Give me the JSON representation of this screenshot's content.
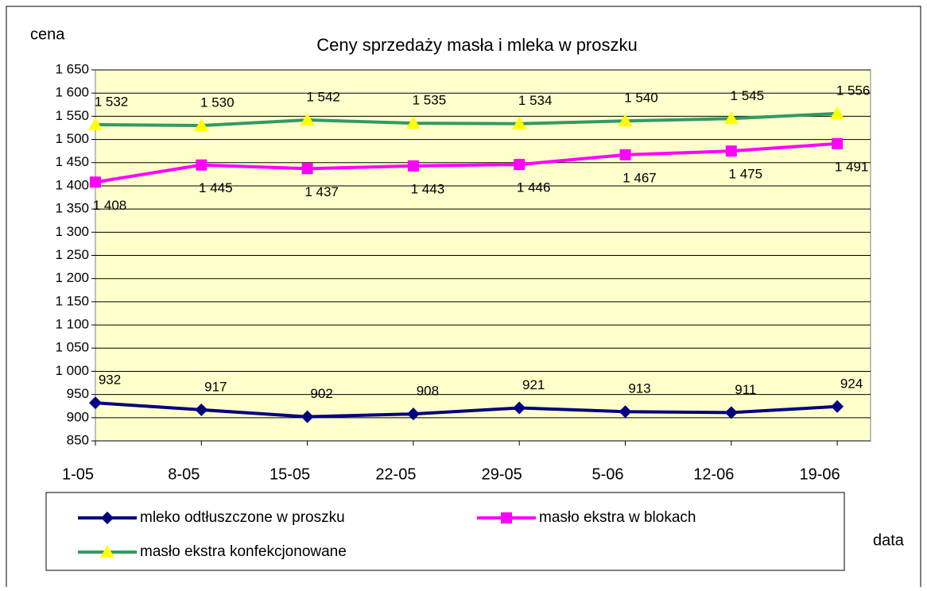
{
  "chart_data": {
    "type": "line",
    "title": "Ceny sprzedaży masła i mleka w proszku",
    "y_label": "cena",
    "x_label": "data",
    "categories": [
      "1-05",
      "8-05",
      "15-05",
      "22-05",
      "29-05",
      "5-06",
      "12-06",
      "19-06"
    ],
    "series": [
      {
        "name": "mleko odtłuszczone w proszku",
        "color": "#000080",
        "marker": "diamond",
        "values": [
          932,
          917,
          902,
          908,
          921,
          913,
          911,
          924
        ]
      },
      {
        "name": "masło ekstra w blokach",
        "color": "#ff00ff",
        "marker": "square",
        "values": [
          1408,
          1445,
          1437,
          1443,
          1446,
          1467,
          1475,
          1491
        ],
        "value_labels": [
          "1 408",
          "1 445",
          "1 437",
          "1 443",
          "1 446",
          "1 467",
          "1 475",
          "1 491"
        ]
      },
      {
        "name": "masło ekstra konfekcjonowane",
        "color": "#339966",
        "marker": "triangle",
        "marker_color": "#ffff00",
        "values": [
          1532,
          1530,
          1542,
          1535,
          1534,
          1540,
          1545,
          1556
        ],
        "value_labels": [
          "1 532",
          "1 530",
          "1 542",
          "1 535",
          "1 534",
          "1 540",
          "1 545",
          "1 556"
        ]
      }
    ],
    "ylim": [
      850,
      1650
    ],
    "yticks": [
      850,
      900,
      950,
      {
        "value": 1000,
        "label": "1 000"
      },
      {
        "value": 1050,
        "label": "1 050"
      },
      {
        "value": 1100,
        "label": "1 100"
      },
      {
        "value": 1150,
        "label": "1 150"
      },
      {
        "value": 1200,
        "label": "1 200"
      },
      {
        "value": 1250,
        "label": "1 250"
      },
      {
        "value": 1300,
        "label": "1 300"
      },
      {
        "value": 1350,
        "label": "1 350"
      },
      {
        "value": 1400,
        "label": "1 400"
      },
      {
        "value": 1450,
        "label": "1 450"
      },
      {
        "value": 1500,
        "label": "1 500"
      },
      {
        "value": 1550,
        "label": "1 550"
      },
      {
        "value": 1600,
        "label": "1 600"
      },
      {
        "value": 1650,
        "label": "1 650"
      }
    ],
    "grid": true,
    "legend": "bottom",
    "plot_background": "#ffffcc"
  }
}
